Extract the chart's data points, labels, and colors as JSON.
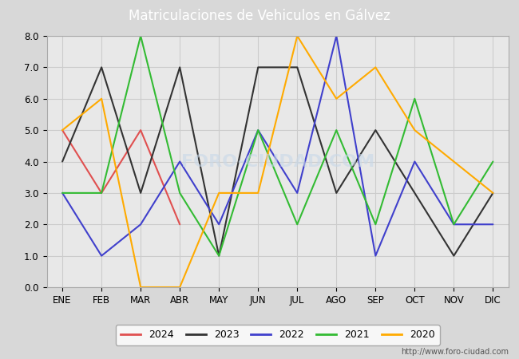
{
  "title": "Matriculaciones de Vehiculos en Gálvez",
  "title_bg_color": "#5b9bd5",
  "title_text_color": "#ffffff",
  "months": [
    "ENE",
    "FEB",
    "MAR",
    "ABR",
    "MAY",
    "JUN",
    "JUL",
    "AGO",
    "SEP",
    "OCT",
    "NOV",
    "DIC"
  ],
  "series": [
    {
      "label": "2024",
      "color": "#e05050",
      "data": [
        5,
        3,
        5,
        2,
        null,
        null,
        null,
        null,
        null,
        null,
        null,
        null
      ]
    },
    {
      "label": "2023",
      "color": "#333333",
      "data": [
        4,
        7,
        3,
        7,
        1,
        7,
        7,
        3,
        5,
        3,
        1,
        3
      ]
    },
    {
      "label": "2022",
      "color": "#4040cc",
      "data": [
        3,
        1,
        2,
        4,
        2,
        5,
        3,
        8,
        1,
        4,
        2,
        2
      ]
    },
    {
      "label": "2021",
      "color": "#33bb33",
      "data": [
        3,
        3,
        8,
        3,
        1,
        5,
        2,
        5,
        2,
        6,
        2,
        4
      ]
    },
    {
      "label": "2020",
      "color": "#ffaa00",
      "data": [
        5,
        6,
        0,
        0,
        3,
        3,
        8,
        6,
        7,
        5,
        4,
        3
      ]
    }
  ],
  "ylim": [
    0.0,
    8.0
  ],
  "yticks": [
    0.0,
    1.0,
    2.0,
    3.0,
    4.0,
    5.0,
    6.0,
    7.0,
    8.0
  ],
  "grid_color": "#cccccc",
  "outer_bg_color": "#d8d8d8",
  "plot_bg_color": "#e8e8e8",
  "watermark_text": "FORO-CIUDAD.COM",
  "watermark_color": "#c8d8e8",
  "watermark_alpha": 0.6,
  "url_text": "http://www.foro-ciudad.com",
  "linewidth": 1.5
}
